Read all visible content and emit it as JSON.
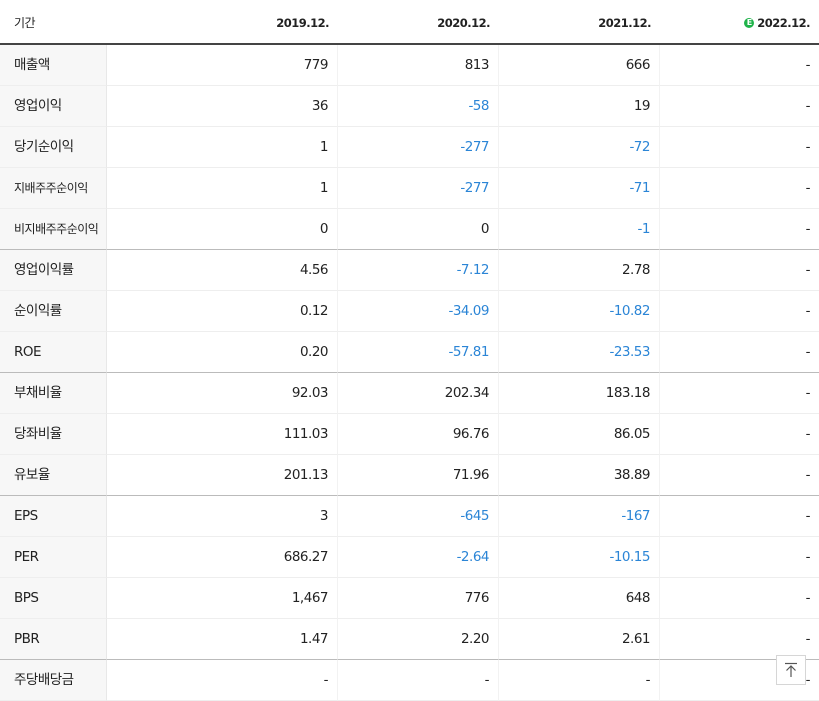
{
  "header": {
    "label": "기간",
    "columns": [
      "2019.12.",
      "2020.12.",
      "2021.12.",
      "2022.12."
    ],
    "estimate_badge": "E"
  },
  "rows": [
    {
      "label": "매출액",
      "values": [
        "779",
        "813",
        "666",
        "-"
      ]
    },
    {
      "label": "영업이익",
      "values": [
        "36",
        "-58",
        "19",
        "-"
      ]
    },
    {
      "label": "당기순이익",
      "values": [
        "1",
        "-277",
        "-72",
        "-"
      ]
    },
    {
      "label": "지배주주순이익",
      "values": [
        "1",
        "-277",
        "-71",
        "-"
      ]
    },
    {
      "label": "비지배주주순이익",
      "values": [
        "0",
        "0",
        "-1",
        "-"
      ]
    },
    {
      "label": "영업이익률",
      "values": [
        "4.56",
        "-7.12",
        "2.78",
        "-"
      ]
    },
    {
      "label": "순이익률",
      "values": [
        "0.12",
        "-34.09",
        "-10.82",
        "-"
      ]
    },
    {
      "label": "ROE",
      "values": [
        "0.20",
        "-57.81",
        "-23.53",
        "-"
      ]
    },
    {
      "label": "부채비율",
      "values": [
        "92.03",
        "202.34",
        "183.18",
        "-"
      ]
    },
    {
      "label": "당좌비율",
      "values": [
        "111.03",
        "96.76",
        "86.05",
        "-"
      ]
    },
    {
      "label": "유보율",
      "values": [
        "201.13",
        "71.96",
        "38.89",
        "-"
      ]
    },
    {
      "label": "EPS",
      "values": [
        "3",
        "-645",
        "-167",
        "-"
      ]
    },
    {
      "label": "PER",
      "values": [
        "686.27",
        "-2.64",
        "-10.15",
        "-"
      ]
    },
    {
      "label": "BPS",
      "values": [
        "1,467",
        "776",
        "648",
        "-"
      ]
    },
    {
      "label": "PBR",
      "values": [
        "1.47",
        "2.20",
        "2.61",
        "-"
      ]
    },
    {
      "label": "주당배당금",
      "values": [
        "-",
        "-",
        "-",
        "-"
      ]
    }
  ],
  "colors": {
    "negative": "#2b85d6",
    "estimate_badge": "#1fb34a"
  },
  "scroll_top_icon": "arrow-up-to-top-icon"
}
